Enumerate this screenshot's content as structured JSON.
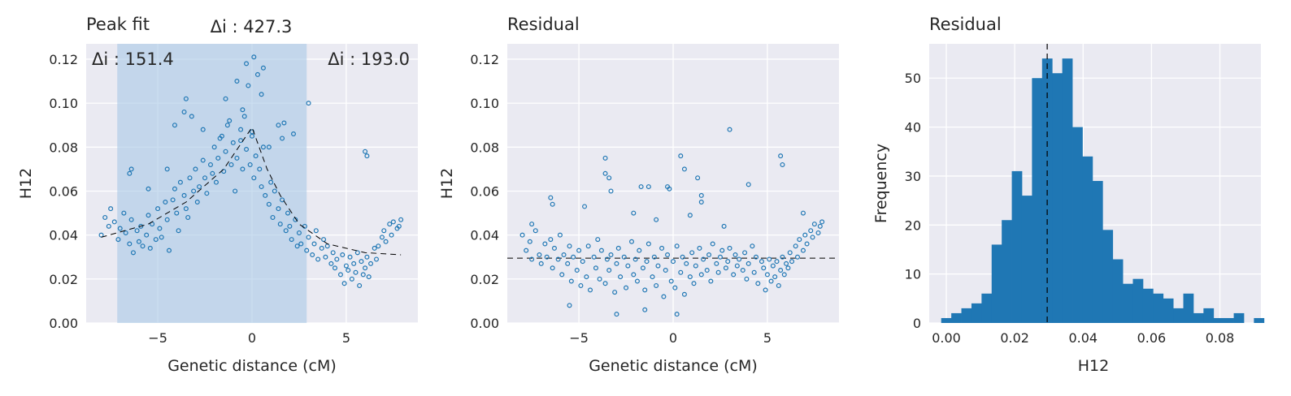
{
  "colors": {
    "point": "#1f77b4",
    "bar": "#1f77b4",
    "band": "#a8c8e6",
    "plot_bg": "#eaeaf2",
    "grid": "#ffffff",
    "line": "#000000"
  },
  "chart_data": [
    {
      "type": "scatter",
      "title": "Peak fit",
      "xlabel": "Genetic distance (cM)",
      "ylabel": "H12",
      "xlim": [
        -8.8,
        8.8
      ],
      "ylim": [
        0,
        0.127
      ],
      "xticks": [
        -5,
        0,
        5
      ],
      "yticks": [
        0.0,
        0.02,
        0.04,
        0.06,
        0.08,
        0.1,
        0.12
      ],
      "xtick_labels": [
        "−5",
        "0",
        "5"
      ],
      "ytick_labels": [
        "0.00",
        "0.02",
        "0.04",
        "0.06",
        "0.08",
        "0.10",
        "0.12"
      ],
      "grid": true,
      "shaded_region": [
        -7.15,
        2.9
      ],
      "fit_line": {
        "x": [
          -8.0,
          -5.5,
          -3.5,
          -1.5,
          0.0,
          0.8,
          1.5,
          2.5,
          4.0,
          6.0,
          7.9
        ],
        "y": [
          0.039,
          0.045,
          0.055,
          0.07,
          0.089,
          0.07,
          0.058,
          0.045,
          0.036,
          0.032,
          0.031
        ]
      },
      "annotations": [
        {
          "text": "Δi : 427.3",
          "position": "top-center"
        },
        {
          "text": "Δi : 151.4",
          "position": "top-left"
        },
        {
          "text": "Δi : 193.0",
          "position": "top-right"
        }
      ],
      "x": [
        -8.0,
        -7.8,
        -7.6,
        -7.5,
        -7.3,
        -7.1,
        -7.0,
        -6.8,
        -6.7,
        -6.5,
        -6.4,
        -6.3,
        -6.1,
        -6.0,
        -5.9,
        -5.8,
        -5.6,
        -5.5,
        -5.4,
        -5.3,
        -5.1,
        -5.0,
        -4.9,
        -4.8,
        -4.6,
        -4.5,
        -4.4,
        -4.2,
        -4.1,
        -4.0,
        -3.9,
        -3.8,
        -3.6,
        -3.5,
        -3.4,
        -3.3,
        -3.1,
        -3.0,
        -2.9,
        -2.8,
        -2.6,
        -2.5,
        -2.4,
        -2.2,
        -2.1,
        -2.0,
        -1.9,
        -1.8,
        -1.6,
        -1.5,
        -1.4,
        -1.3,
        -1.1,
        -1.0,
        -0.9,
        -0.8,
        -0.6,
        -0.5,
        -0.4,
        -0.3,
        -0.1,
        0.0,
        0.1,
        0.2,
        0.4,
        0.5,
        0.6,
        0.7,
        0.9,
        1.0,
        1.1,
        1.2,
        1.4,
        1.5,
        1.6,
        1.8,
        1.9,
        2.0,
        2.1,
        2.3,
        2.4,
        2.5,
        2.6,
        2.8,
        2.9,
        3.0,
        3.2,
        3.3,
        3.4,
        3.5,
        3.7,
        3.8,
        3.9,
        4.0,
        4.2,
        4.3,
        4.4,
        4.5,
        4.7,
        4.8,
        4.9,
        5.0,
        5.1,
        5.2,
        5.3,
        5.4,
        5.5,
        5.6,
        5.7,
        5.8,
        5.9,
        6.0,
        6.1,
        6.2,
        6.3,
        6.5,
        6.6,
        6.7,
        6.9,
        7.0,
        7.1,
        7.3,
        7.4,
        7.5,
        7.7,
        7.8,
        7.9,
        -6.5,
        -6.4,
        -5.5,
        -4.5,
        -3.6,
        -3.5,
        -1.7,
        -1.4,
        -0.8,
        -0.5,
        -0.3,
        -0.2,
        0.1,
        0.3,
        0.5,
        0.6,
        1.4,
        1.6,
        1.7,
        3.0,
        6.0,
        6.1,
        -4.1,
        -3.2,
        -2.6,
        -1.2,
        -0.6,
        0.0,
        0.9,
        2.2
      ],
      "y": [
        0.04,
        0.048,
        0.044,
        0.052,
        0.046,
        0.038,
        0.043,
        0.05,
        0.041,
        0.036,
        0.047,
        0.032,
        0.042,
        0.037,
        0.044,
        0.035,
        0.04,
        0.049,
        0.034,
        0.045,
        0.038,
        0.052,
        0.043,
        0.039,
        0.055,
        0.047,
        0.033,
        0.056,
        0.061,
        0.05,
        0.042,
        0.064,
        0.058,
        0.052,
        0.048,
        0.066,
        0.06,
        0.07,
        0.055,
        0.062,
        0.074,
        0.066,
        0.059,
        0.072,
        0.068,
        0.08,
        0.064,
        0.075,
        0.085,
        0.069,
        0.078,
        0.09,
        0.072,
        0.082,
        0.06,
        0.075,
        0.088,
        0.07,
        0.094,
        0.079,
        0.072,
        0.085,
        0.066,
        0.076,
        0.07,
        0.062,
        0.08,
        0.058,
        0.054,
        0.064,
        0.048,
        0.06,
        0.052,
        0.045,
        0.056,
        0.042,
        0.05,
        0.044,
        0.038,
        0.047,
        0.035,
        0.041,
        0.036,
        0.044,
        0.033,
        0.039,
        0.031,
        0.036,
        0.042,
        0.029,
        0.034,
        0.038,
        0.03,
        0.035,
        0.027,
        0.032,
        0.025,
        0.029,
        0.022,
        0.031,
        0.018,
        0.026,
        0.024,
        0.03,
        0.02,
        0.027,
        0.023,
        0.032,
        0.017,
        0.028,
        0.022,
        0.025,
        0.03,
        0.021,
        0.027,
        0.034,
        0.029,
        0.035,
        0.039,
        0.042,
        0.037,
        0.045,
        0.04,
        0.046,
        0.043,
        0.044,
        0.047,
        0.068,
        0.07,
        0.061,
        0.07,
        0.096,
        0.102,
        0.084,
        0.102,
        0.11,
        0.097,
        0.118,
        0.108,
        0.121,
        0.113,
        0.104,
        0.116,
        0.09,
        0.084,
        0.091,
        0.1,
        0.078,
        0.076,
        0.09,
        0.094,
        0.088,
        0.092,
        0.083,
        0.087,
        0.08,
        0.086
      ]
    },
    {
      "type": "scatter",
      "title": "Residual",
      "xlabel": "Genetic distance (cM)",
      "ylabel": "H12",
      "xlim": [
        -8.8,
        8.8
      ],
      "ylim": [
        0,
        0.127
      ],
      "xticks": [
        -5,
        0,
        5
      ],
      "yticks": [
        0.0,
        0.02,
        0.04,
        0.06,
        0.08,
        0.1,
        0.12
      ],
      "xtick_labels": [
        "−5",
        "0",
        "5"
      ],
      "ytick_labels": [
        "0.00",
        "0.02",
        "0.04",
        "0.06",
        "0.08",
        "0.10",
        "0.12"
      ],
      "grid": true,
      "hline": 0.0295,
      "x": [
        -8.0,
        -7.8,
        -7.6,
        -7.5,
        -7.3,
        -7.1,
        -7.0,
        -6.8,
        -6.7,
        -6.5,
        -6.4,
        -6.3,
        -6.1,
        -6.0,
        -5.9,
        -5.8,
        -5.6,
        -5.5,
        -5.4,
        -5.3,
        -5.1,
        -5.0,
        -4.9,
        -4.8,
        -4.6,
        -4.5,
        -4.4,
        -4.2,
        -4.1,
        -4.0,
        -3.9,
        -3.8,
        -3.6,
        -3.5,
        -3.4,
        -3.3,
        -3.1,
        -3.0,
        -2.9,
        -2.8,
        -2.6,
        -2.5,
        -2.4,
        -2.2,
        -2.1,
        -2.0,
        -1.9,
        -1.8,
        -1.6,
        -1.5,
        -1.4,
        -1.3,
        -1.1,
        -1.0,
        -0.9,
        -0.8,
        -0.6,
        -0.5,
        -0.4,
        -0.3,
        -0.1,
        0.0,
        0.1,
        0.2,
        0.4,
        0.5,
        0.6,
        0.7,
        0.9,
        1.0,
        1.1,
        1.2,
        1.4,
        1.5,
        1.6,
        1.8,
        1.9,
        2.0,
        2.1,
        2.3,
        2.4,
        2.5,
        2.6,
        2.8,
        2.9,
        3.0,
        3.2,
        3.3,
        3.4,
        3.5,
        3.7,
        3.8,
        3.9,
        4.0,
        4.2,
        4.3,
        4.4,
        4.5,
        4.7,
        4.8,
        4.9,
        5.0,
        5.1,
        5.2,
        5.3,
        5.4,
        5.5,
        5.6,
        5.7,
        5.8,
        5.9,
        6.0,
        6.1,
        6.2,
        6.3,
        6.5,
        6.6,
        6.7,
        6.9,
        7.0,
        7.1,
        7.3,
        7.4,
        7.5,
        7.7,
        7.8,
        7.9,
        -6.5,
        -6.4,
        -3.6,
        -3.6,
        -3.4,
        -3.3,
        -1.7,
        -1.3,
        -0.3,
        -0.2,
        0.4,
        0.6,
        1.3,
        1.5,
        1.5,
        3.0,
        4.0,
        5.7,
        5.8,
        -7.5,
        -4.7,
        -2.1,
        -0.9,
        0.9,
        2.7,
        6.9,
        -5.5,
        -3.0,
        -1.5,
        0.2
      ],
      "y": [
        0.04,
        0.033,
        0.037,
        0.029,
        0.042,
        0.031,
        0.027,
        0.036,
        0.03,
        0.038,
        0.025,
        0.034,
        0.029,
        0.04,
        0.022,
        0.031,
        0.027,
        0.035,
        0.019,
        0.03,
        0.024,
        0.033,
        0.017,
        0.028,
        0.021,
        0.035,
        0.015,
        0.03,
        0.025,
        0.038,
        0.02,
        0.033,
        0.018,
        0.029,
        0.024,
        0.031,
        0.014,
        0.027,
        0.034,
        0.021,
        0.03,
        0.016,
        0.026,
        0.037,
        0.022,
        0.029,
        0.019,
        0.033,
        0.025,
        0.015,
        0.028,
        0.036,
        0.021,
        0.03,
        0.017,
        0.026,
        0.034,
        0.012,
        0.024,
        0.031,
        0.019,
        0.028,
        0.016,
        0.035,
        0.023,
        0.03,
        0.013,
        0.027,
        0.021,
        0.032,
        0.018,
        0.026,
        0.034,
        0.022,
        0.029,
        0.024,
        0.031,
        0.019,
        0.036,
        0.027,
        0.023,
        0.03,
        0.033,
        0.025,
        0.028,
        0.034,
        0.022,
        0.031,
        0.026,
        0.029,
        0.024,
        0.032,
        0.02,
        0.027,
        0.035,
        0.023,
        0.03,
        0.018,
        0.028,
        0.025,
        0.015,
        0.022,
        0.029,
        0.019,
        0.026,
        0.021,
        0.028,
        0.017,
        0.024,
        0.03,
        0.022,
        0.027,
        0.025,
        0.032,
        0.028,
        0.035,
        0.03,
        0.038,
        0.033,
        0.04,
        0.036,
        0.042,
        0.039,
        0.045,
        0.041,
        0.044,
        0.046,
        0.057,
        0.054,
        0.075,
        0.068,
        0.066,
        0.06,
        0.062,
        0.062,
        0.062,
        0.061,
        0.076,
        0.07,
        0.066,
        0.058,
        0.055,
        0.088,
        0.063,
        0.076,
        0.072,
        0.045,
        0.053,
        0.05,
        0.047,
        0.049,
        0.044,
        0.05,
        0.008,
        0.004,
        0.006,
        0.004
      ]
    },
    {
      "type": "bar",
      "title": "Residual",
      "xlabel": "H12",
      "ylabel": "Frequency",
      "xlim": [
        -0.005,
        0.092
      ],
      "ylim": [
        0,
        57
      ],
      "xticks": [
        0.0,
        0.02,
        0.04,
        0.06,
        0.08
      ],
      "yticks": [
        0,
        10,
        20,
        30,
        40,
        50
      ],
      "xtick_labels": [
        "0.00",
        "0.02",
        "0.04",
        "0.06",
        "0.08"
      ],
      "ytick_labels": [
        "0",
        "10",
        "20",
        "30",
        "40",
        "50"
      ],
      "grid": true,
      "vline": 0.0295,
      "bin_start": -0.0015,
      "bin_width": 0.00295,
      "values": [
        1,
        2,
        3,
        4,
        6,
        16,
        21,
        31,
        26,
        50,
        54,
        51,
        54,
        40,
        34,
        29,
        19,
        13,
        8,
        9,
        7,
        6,
        5,
        3,
        6,
        2,
        3,
        1,
        1,
        2,
        0,
        1
      ]
    }
  ]
}
